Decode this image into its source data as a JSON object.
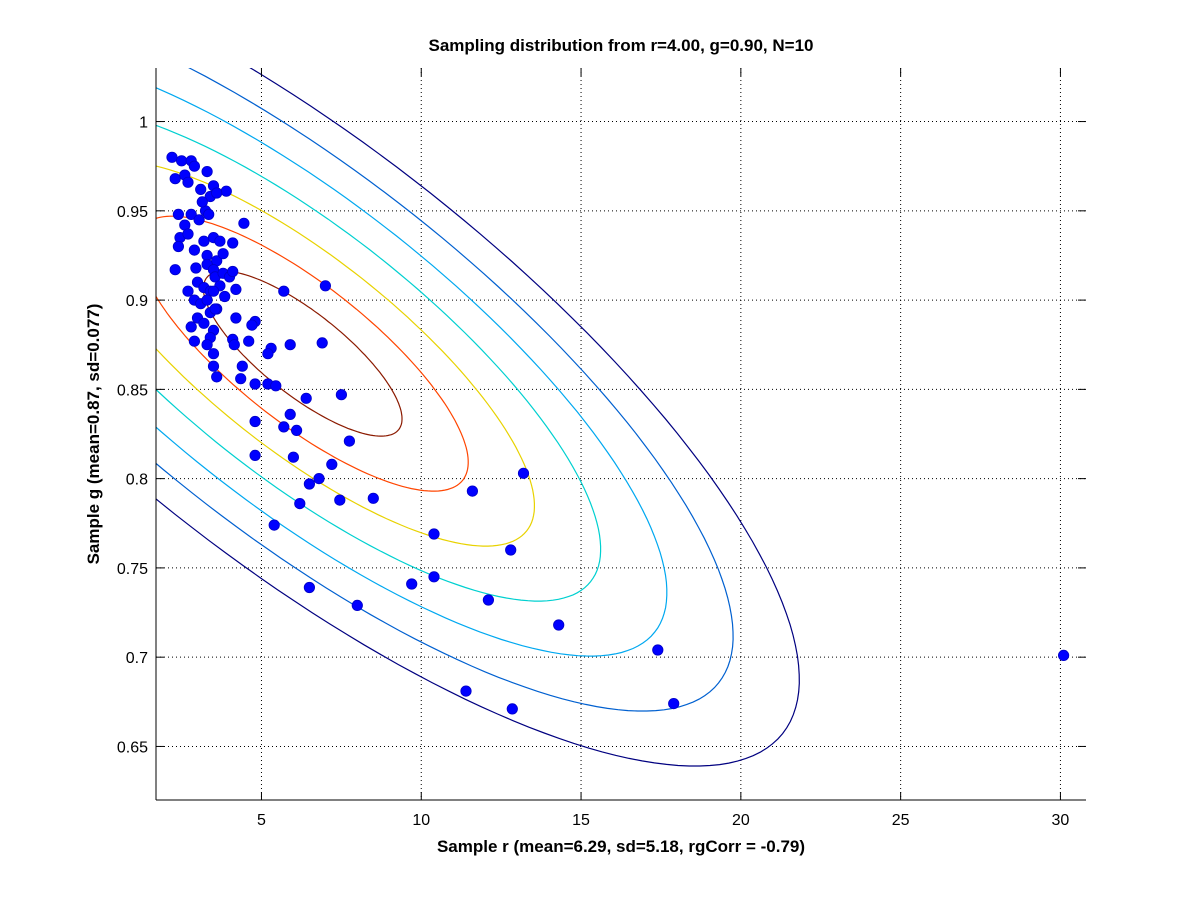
{
  "chart_data": {
    "type": "scatter",
    "title": "Sampling distribution from r=4.00, g=0.90, N=10",
    "xlabel": "Sample r (mean=6.29, sd=5.18, rgCorr = -0.79)",
    "ylabel": "Sample g (mean=0.87, sd=0.077)",
    "xlim": [
      1.7,
      30.8
    ],
    "ylim": [
      0.62,
      1.03
    ],
    "xticks": [
      5,
      10,
      15,
      20,
      25,
      30
    ],
    "yticks": [
      0.65,
      0.7,
      0.75,
      0.8,
      0.85,
      0.9,
      0.95,
      1
    ],
    "xtick_labels": [
      "5",
      "10",
      "15",
      "20",
      "25",
      "30"
    ],
    "ytick_labels": [
      "0.65",
      "0.7",
      "0.75",
      "0.8",
      "0.85",
      "0.9",
      "0.95",
      "1"
    ],
    "grid": true,
    "marker_color": "#0000ff",
    "contours": {
      "center": [
        6.29,
        0.87
      ],
      "sd": [
        5.18,
        0.077
      ],
      "corr": -0.79,
      "levels": [
        {
          "k": 0.6,
          "color": "#8b1a00"
        },
        {
          "k": 1.0,
          "color": "#ff4500"
        },
        {
          "k": 1.4,
          "color": "#e8d200"
        },
        {
          "k": 1.8,
          "color": "#00d0d0"
        },
        {
          "k": 2.2,
          "color": "#00a8f0"
        },
        {
          "k": 2.6,
          "color": "#0060d0"
        },
        {
          "k": 3.0,
          "color": "#000080"
        }
      ]
    },
    "points": [
      [
        2.2,
        0.98
      ],
      [
        2.5,
        0.978
      ],
      [
        2.8,
        0.978
      ],
      [
        2.3,
        0.968
      ],
      [
        2.6,
        0.97
      ],
      [
        2.9,
        0.975
      ],
      [
        3.3,
        0.972
      ],
      [
        2.7,
        0.966
      ],
      [
        3.1,
        0.962
      ],
      [
        3.5,
        0.964
      ],
      [
        3.9,
        0.961
      ],
      [
        3.4,
        0.958
      ],
      [
        3.6,
        0.96
      ],
      [
        3.25,
        0.95
      ],
      [
        2.4,
        0.948
      ],
      [
        2.6,
        0.942
      ],
      [
        2.8,
        0.948
      ],
      [
        3.05,
        0.945
      ],
      [
        3.35,
        0.948
      ],
      [
        3.15,
        0.955
      ],
      [
        2.45,
        0.935
      ],
      [
        2.7,
        0.937
      ],
      [
        3.2,
        0.933
      ],
      [
        3.5,
        0.935
      ],
      [
        3.7,
        0.933
      ],
      [
        4.1,
        0.932
      ],
      [
        4.45,
        0.943
      ],
      [
        2.4,
        0.93
      ],
      [
        2.9,
        0.928
      ],
      [
        3.3,
        0.925
      ],
      [
        3.6,
        0.922
      ],
      [
        3.8,
        0.926
      ],
      [
        2.3,
        0.917
      ],
      [
        2.95,
        0.918
      ],
      [
        3.3,
        0.92
      ],
      [
        3.5,
        0.917
      ],
      [
        3.55,
        0.913
      ],
      [
        3.8,
        0.915
      ],
      [
        4.0,
        0.913
      ],
      [
        4.1,
        0.916
      ],
      [
        2.7,
        0.905
      ],
      [
        3.0,
        0.91
      ],
      [
        3.2,
        0.907
      ],
      [
        3.4,
        0.905
      ],
      [
        3.7,
        0.908
      ],
      [
        4.2,
        0.906
      ],
      [
        2.9,
        0.9
      ],
      [
        3.1,
        0.898
      ],
      [
        3.3,
        0.9
      ],
      [
        3.6,
        0.895
      ],
      [
        3.5,
        0.905
      ],
      [
        3.85,
        0.902
      ],
      [
        3.0,
        0.89
      ],
      [
        3.4,
        0.893
      ],
      [
        3.55,
        0.895
      ],
      [
        4.2,
        0.89
      ],
      [
        4.8,
        0.888
      ],
      [
        2.8,
        0.885
      ],
      [
        3.2,
        0.887
      ],
      [
        3.5,
        0.883
      ],
      [
        3.4,
        0.879
      ],
      [
        4.1,
        0.878
      ],
      [
        4.7,
        0.886
      ],
      [
        5.7,
        0.905
      ],
      [
        7.0,
        0.908
      ],
      [
        2.9,
        0.877
      ],
      [
        3.3,
        0.875
      ],
      [
        3.5,
        0.87
      ],
      [
        4.15,
        0.875
      ],
      [
        4.6,
        0.877
      ],
      [
        5.3,
        0.873
      ],
      [
        5.9,
        0.875
      ],
      [
        6.9,
        0.876
      ],
      [
        3.5,
        0.863
      ],
      [
        4.4,
        0.863
      ],
      [
        3.6,
        0.857
      ],
      [
        4.35,
        0.856
      ],
      [
        4.8,
        0.853
      ],
      [
        5.2,
        0.853
      ],
      [
        5.45,
        0.852
      ],
      [
        5.2,
        0.87
      ],
      [
        6.4,
        0.845
      ],
      [
        7.5,
        0.847
      ],
      [
        5.9,
        0.836
      ],
      [
        4.8,
        0.832
      ],
      [
        5.7,
        0.829
      ],
      [
        6.1,
        0.827
      ],
      [
        7.75,
        0.821
      ],
      [
        4.8,
        0.813
      ],
      [
        6.0,
        0.812
      ],
      [
        7.2,
        0.808
      ],
      [
        6.8,
        0.8
      ],
      [
        6.5,
        0.797
      ],
      [
        6.2,
        0.786
      ],
      [
        7.45,
        0.788
      ],
      [
        8.5,
        0.789
      ],
      [
        11.6,
        0.793
      ],
      [
        13.2,
        0.803
      ],
      [
        5.4,
        0.774
      ],
      [
        10.4,
        0.769
      ],
      [
        12.8,
        0.76
      ],
      [
        9.7,
        0.741
      ],
      [
        10.4,
        0.745
      ],
      [
        6.5,
        0.739
      ],
      [
        8.0,
        0.729
      ],
      [
        12.1,
        0.732
      ],
      [
        14.3,
        0.718
      ],
      [
        17.4,
        0.704
      ],
      [
        30.1,
        0.701
      ],
      [
        11.4,
        0.681
      ],
      [
        17.9,
        0.674
      ],
      [
        12.85,
        0.671
      ]
    ]
  }
}
